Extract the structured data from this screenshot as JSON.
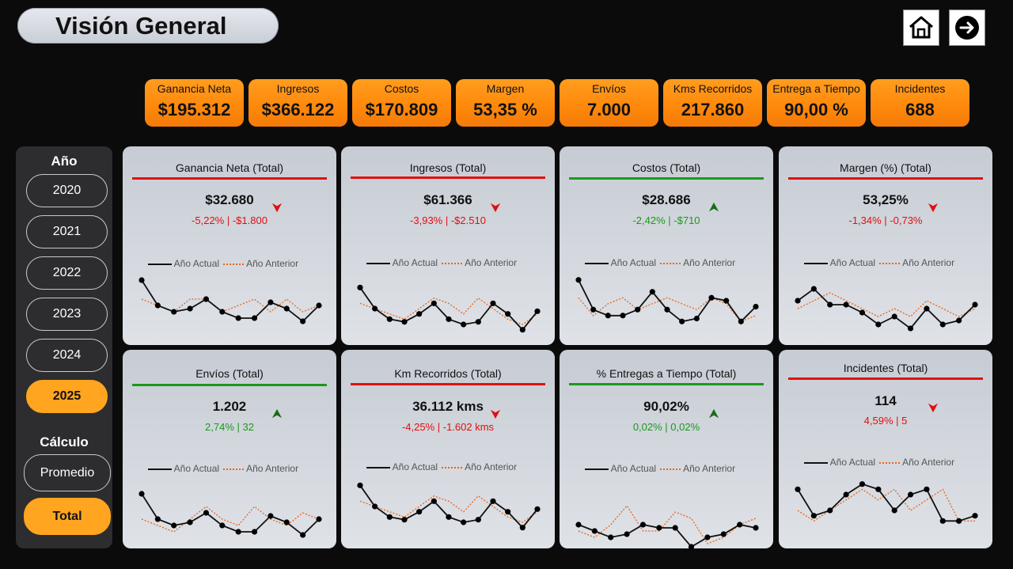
{
  "header": {
    "title": "Visión General"
  },
  "nav": {
    "home": "home-icon",
    "next": "arrow-right-icon"
  },
  "colors": {
    "kpi": "#ff8c10",
    "selected": "#ffa51f",
    "down": "#e01010",
    "up": "#1a9a1a",
    "current": "#111111",
    "previous": "#e8651a"
  },
  "kpis": [
    {
      "label": "Ganancia Neta",
      "value": "$195.312"
    },
    {
      "label": "Ingresos",
      "value": "$366.122"
    },
    {
      "label": "Costos",
      "value": "$170.809"
    },
    {
      "label": "Margen",
      "value": "53,35 %"
    },
    {
      "label": "Envíos",
      "value": "7.000"
    },
    {
      "label": "Kms Recorridos",
      "value": "217.860"
    },
    {
      "label": "Entrega a Tiempo",
      "value": "90,00 %"
    },
    {
      "label": "Incidentes",
      "value": "688"
    }
  ],
  "sidebar": {
    "year_heading": "Año",
    "years": [
      "2020",
      "2021",
      "2022",
      "2023",
      "2024",
      "2025"
    ],
    "selected_year": "2025",
    "calc_heading": "Cálculo",
    "calc_options": [
      "Promedio",
      "Total"
    ],
    "selected_calc": "Total"
  },
  "legend": {
    "current": "Año Actual",
    "previous": "Año Anterior"
  },
  "cards": [
    {
      "title": "Ganancia Neta (Total)",
      "value": "$32.680",
      "delta": "-5,22% | -$1.800",
      "trend": "down",
      "current": [
        12,
        8,
        7,
        7.5,
        9,
        7,
        6,
        6,
        8.5,
        7.5,
        5.5,
        8
      ],
      "previous": [
        9,
        8,
        7,
        9,
        9,
        7,
        8,
        9,
        7,
        9,
        7,
        8
      ]
    },
    {
      "title": "Ingresos (Total)",
      "value": "$61.366",
      "delta": "-3,93% | -$2.510",
      "trend": "down",
      "current": [
        12,
        8,
        6,
        5.5,
        7,
        9,
        6,
        5,
        5.5,
        9,
        7,
        4,
        7.5
      ],
      "previous": [
        9,
        8,
        7,
        6,
        8,
        10,
        9,
        7,
        10,
        8,
        6,
        5,
        7
      ]
    },
    {
      "title": "Costos (Total)",
      "value": "$28.686",
      "delta": "-2,42% | -$710",
      "trend": "up",
      "current": [
        13,
        8,
        7,
        7,
        8,
        11,
        8,
        6,
        6.5,
        10,
        9.5,
        6,
        8.5
      ],
      "previous": [
        10,
        7,
        9,
        10,
        8,
        9,
        10,
        9,
        8,
        10,
        9,
        6,
        7
      ]
    },
    {
      "title": "Margen (%) (Total)",
      "value": "53,25%",
      "delta": "-1,34% | -0,73%",
      "trend": "down",
      "current": [
        9,
        10.5,
        8.5,
        8.5,
        7.5,
        6,
        7,
        5.5,
        8,
        6,
        6.5,
        8.5
      ],
      "previous": [
        8,
        9,
        10,
        9,
        8,
        7,
        8,
        7,
        9,
        8,
        7,
        8
      ]
    },
    {
      "title": "Envíos (Total)",
      "value": "1.202",
      "delta": "2,74% | 32",
      "trend": "up",
      "current": [
        12,
        8,
        7,
        7.5,
        9,
        7,
        6,
        6,
        8.5,
        7.5,
        5.5,
        8
      ],
      "previous": [
        8,
        7,
        6,
        8,
        10,
        8,
        7,
        10,
        8,
        7,
        9,
        8
      ]
    },
    {
      "title": "Km Recorridos (Total)",
      "value": "36.112 kms",
      "delta": "-4,25% | -1.602 kms",
      "trend": "down",
      "current": [
        12,
        8,
        6,
        5.5,
        7,
        9,
        6,
        5,
        5.5,
        9,
        7,
        4,
        7.5
      ],
      "previous": [
        9,
        8,
        7,
        6,
        8,
        10,
        9,
        7,
        10,
        8,
        6,
        5,
        7
      ]
    },
    {
      "title": "% Entregas a Tiempo (Total)",
      "value": "90,02%",
      "delta": "0,02% | 0,02%",
      "trend": "up",
      "current": [
        8,
        7,
        6,
        6.5,
        8,
        7.5,
        7.5,
        4.5,
        6,
        6.5,
        8,
        7.5
      ],
      "previous": [
        7,
        6,
        8,
        11,
        7,
        7,
        10,
        9,
        5,
        6,
        8,
        9
      ]
    },
    {
      "title": "Incidentes (Total)",
      "value": "114",
      "delta": "4,59% | 5",
      "trend": "down",
      "current": [
        10,
        7.5,
        8,
        9.5,
        10.5,
        10,
        8,
        9.5,
        10,
        7,
        7,
        7.5
      ],
      "previous": [
        8,
        7,
        8,
        9,
        10,
        9,
        10,
        8,
        9,
        10,
        7,
        7
      ]
    }
  ]
}
